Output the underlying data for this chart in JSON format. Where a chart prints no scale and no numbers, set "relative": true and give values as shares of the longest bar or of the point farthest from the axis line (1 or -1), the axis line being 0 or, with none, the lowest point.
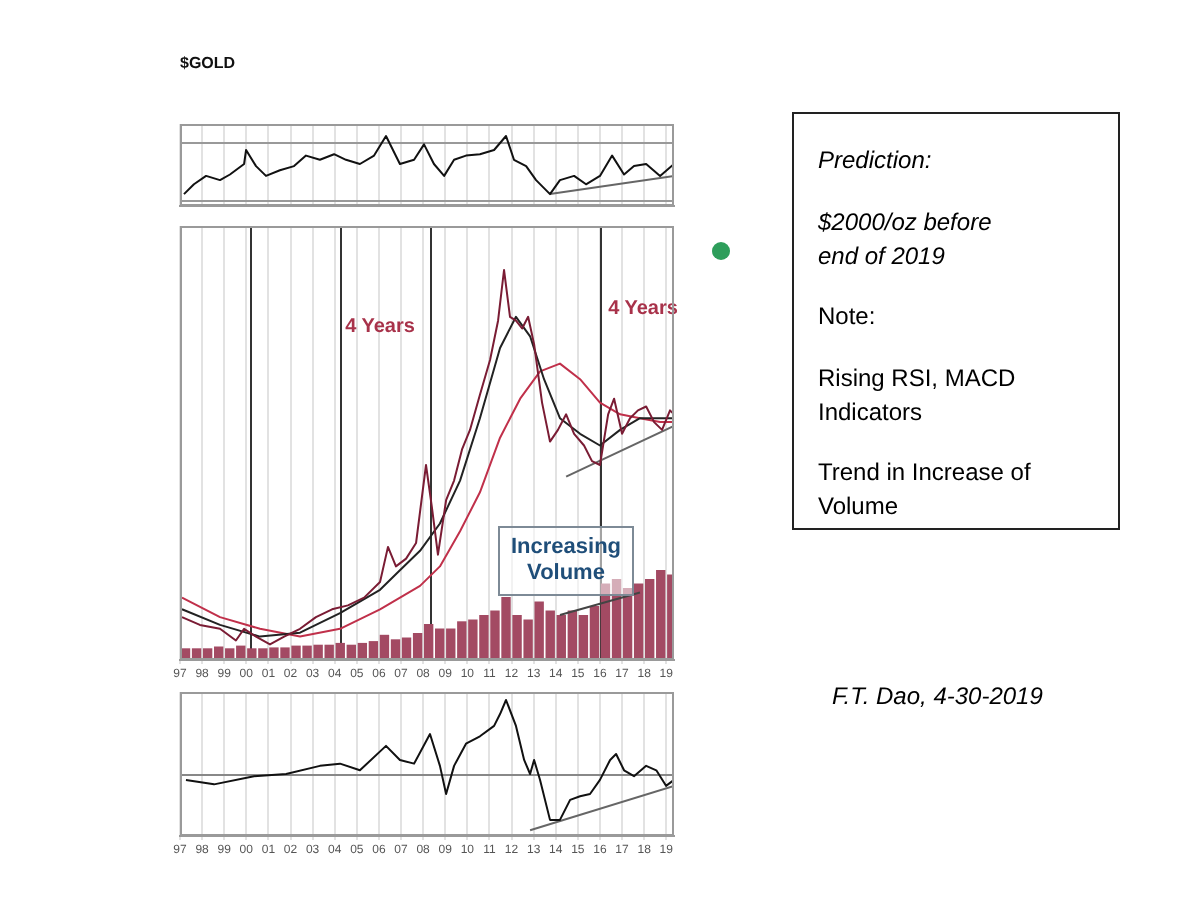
{
  "chart_data": [
    {
      "type": "line",
      "title": "$GOLD",
      "relative": true,
      "xlim": [
        1997,
        2019.35
      ],
      "grid": "x",
      "tick_labels": false,
      "xticks": [
        1997,
        1998,
        1999,
        2000,
        2001,
        2002,
        2003,
        2004,
        2005,
        2006,
        2007,
        2008,
        2009,
        2010,
        2011,
        2012,
        2013,
        2014,
        2015,
        2016,
        2017,
        2018,
        2019
      ],
      "x": [
        1997.18,
        1997.63,
        1998.18,
        1998.81,
        1999.26,
        1999.9,
        1999.99,
        2000.44,
        2000.89,
        2001.52,
        2002.16,
        2002.7,
        2003.33,
        2003.97,
        2004.51,
        2005.14,
        2005.78,
        2006.32,
        2006.95,
        2007.59,
        2008.04,
        2008.49,
        2008.95,
        2009.4,
        2009.94,
        2010.57,
        2011.21,
        2011.75,
        2012.11,
        2012.66,
        2013.11,
        2013.74,
        2014.19,
        2014.83,
        2015.37,
        2016.0,
        2016.55,
        2017.09,
        2017.54,
        2018.09,
        2018.72,
        2019.35
      ],
      "series": [
        {
          "color": "#111111",
          "values": [
            0.17,
            0.31,
            0.43,
            0.37,
            0.45,
            0.6,
            0.8,
            0.57,
            0.43,
            0.51,
            0.57,
            0.72,
            0.66,
            0.74,
            0.66,
            0.6,
            0.72,
            1,
            0.6,
            0.66,
            0.88,
            0.6,
            0.43,
            0.66,
            0.72,
            0.74,
            0.8,
            1,
            0.66,
            0.57,
            0.37,
            0.17,
            0.37,
            0.43,
            0.31,
            0.43,
            0.72,
            0.45,
            0.57,
            0.6,
            0.43,
            0.6
          ]
        },
        {
          "color": "#666666",
          "x": [
            2013.74,
            2019.35
          ],
          "values": [
            0.17,
            0.43
          ]
        }
      ],
      "ref_lines": [
        {
          "axis": "y",
          "value": 0.92,
          "color": "#999999"
        },
        {
          "axis": "y",
          "value": 0.09,
          "color": "#999999"
        }
      ]
    },
    {
      "type": "line",
      "relative": true,
      "xlim": [
        1997,
        2019.35
      ],
      "grid": "x",
      "tick_labels": "x",
      "xticks": [
        {
          "value": 1997,
          "label": "97"
        },
        {
          "value": 1998,
          "label": "98"
        },
        {
          "value": 1999,
          "label": "99"
        },
        {
          "value": 2000,
          "label": "00"
        },
        {
          "value": 2001,
          "label": "01"
        },
        {
          "value": 2002,
          "label": "02"
        },
        {
          "value": 2003,
          "label": "03"
        },
        {
          "value": 2004,
          "label": "04"
        },
        {
          "value": 2005,
          "label": "05"
        },
        {
          "value": 2006,
          "label": "06"
        },
        {
          "value": 2007,
          "label": "07"
        },
        {
          "value": 2008,
          "label": "08"
        },
        {
          "value": 2009,
          "label": "09"
        },
        {
          "value": 2010,
          "label": "10"
        },
        {
          "value": 2011,
          "label": "11"
        },
        {
          "value": 2012,
          "label": "12"
        },
        {
          "value": 2013,
          "label": "13"
        },
        {
          "value": 2014,
          "label": "14"
        },
        {
          "value": 2015,
          "label": "15"
        },
        {
          "value": 2016,
          "label": "16"
        },
        {
          "value": 2017,
          "label": "17"
        },
        {
          "value": 2018,
          "label": "18"
        },
        {
          "value": 2019,
          "label": "19"
        }
      ],
      "x": [
        1997.09,
        1997.9,
        1998.81,
        1999.53,
        1999.9,
        2000.44,
        2001.07,
        2001.71,
        2002.43,
        2003.15,
        2003.88,
        2004.6,
        2005.33,
        2006.05,
        2006.41,
        2006.77,
        2007.23,
        2007.68,
        2008.13,
        2008.4,
        2008.67,
        2009.04,
        2009.4,
        2009.76,
        2010.12,
        2010.57,
        2011.03,
        2011.39,
        2011.66,
        2011.93,
        2012.2,
        2012.48,
        2012.75,
        2013.02,
        2013.38,
        2013.74,
        2014.1,
        2014.47,
        2014.83,
        2015.28,
        2015.64,
        2016.0,
        2016.37,
        2016.64,
        2017.0,
        2017.36,
        2017.72,
        2018.09,
        2018.45,
        2018.81,
        2019.17,
        2019.35
      ],
      "series": [
        {
          "type": "bar",
          "axis": "y2",
          "color": "#a34a63",
          "x": [
            1997.25,
            1997.75,
            1998.25,
            1998.75,
            1999.25,
            1999.75,
            2000.25,
            2000.75,
            2001.25,
            2001.75,
            2002.25,
            2002.75,
            2003.25,
            2003.75,
            2004.25,
            2004.75,
            2005.25,
            2005.75,
            2006.25,
            2006.75,
            2007.25,
            2007.75,
            2008.25,
            2008.75,
            2009.25,
            2009.75,
            2010.25,
            2010.75,
            2011.25,
            2011.75,
            2012.25,
            2012.75,
            2013.25,
            2013.75,
            2014.25,
            2014.75,
            2015.25,
            2015.75,
            2016.25,
            2016.75,
            2017.25,
            2017.75,
            2018.25,
            2018.75,
            2019.25
          ],
          "values": [
            0.13,
            0.13,
            0.13,
            0.15,
            0.13,
            0.16,
            0.13,
            0.13,
            0.14,
            0.14,
            0.16,
            0.16,
            0.17,
            0.17,
            0.19,
            0.17,
            0.19,
            0.21,
            0.28,
            0.23,
            0.25,
            0.3,
            0.4,
            0.35,
            0.35,
            0.43,
            0.45,
            0.5,
            0.55,
            0.7,
            0.5,
            0.45,
            0.65,
            0.55,
            0.5,
            0.55,
            0.5,
            0.6,
            0.85,
            0.9,
            0.8,
            0.85,
            0.9,
            1,
            0.95
          ]
        },
        {
          "color": "#7a1c34",
          "values": [
            0.11,
            0.09,
            0.08,
            0.05,
            0.08,
            0.06,
            0.04,
            0.06,
            0.08,
            0.11,
            0.13,
            0.14,
            0.16,
            0.2,
            0.29,
            0.24,
            0.26,
            0.3,
            0.5,
            0.39,
            0.27,
            0.41,
            0.46,
            0.54,
            0.59,
            0.68,
            0.77,
            0.87,
            1,
            0.88,
            0.87,
            0.85,
            0.88,
            0.81,
            0.66,
            0.56,
            0.59,
            0.63,
            0.58,
            0.55,
            0.51,
            0.5,
            0.63,
            0.67,
            0.58,
            0.62,
            0.64,
            0.65,
            0.61,
            0.59,
            0.64,
            0.63
          ]
        },
        {
          "color": "#222222",
          "x": [
            1997.09,
            1998.81,
            2000.62,
            2002.43,
            2004.24,
            2006.05,
            2006.95,
            2007.86,
            2008.76,
            2009.67,
            2010.57,
            2011.48,
            2012.2,
            2012.84,
            2013.47,
            2014.19,
            2015.1,
            2016.0,
            2016.91,
            2017.81,
            2018.72,
            2019.35
          ],
          "values": [
            0.13,
            0.09,
            0.06,
            0.07,
            0.12,
            0.18,
            0.23,
            0.28,
            0.35,
            0.46,
            0.62,
            0.8,
            0.88,
            0.83,
            0.72,
            0.62,
            0.58,
            0.55,
            0.59,
            0.62,
            0.62,
            0.62
          ]
        },
        {
          "color": "#c0304a",
          "x": [
            1997.09,
            1998.81,
            2000.62,
            2002.43,
            2004.24,
            2006.05,
            2007.86,
            2008.76,
            2009.67,
            2010.57,
            2011.48,
            2012.39,
            2013.29,
            2014.19,
            2015.1,
            2016.0,
            2016.91,
            2017.81,
            2018.72,
            2019.35
          ],
          "values": [
            0.16,
            0.11,
            0.08,
            0.06,
            0.08,
            0.13,
            0.19,
            0.24,
            0.33,
            0.43,
            0.57,
            0.67,
            0.74,
            0.76,
            0.72,
            0.66,
            0.63,
            0.62,
            0.61,
            0.61
          ]
        },
        {
          "color": "#666666",
          "x": [
            2014.47,
            2019.35
          ],
          "values": [
            0.47,
            0.6
          ]
        },
        {
          "axis": "y2",
          "color": "#444444",
          "x": [
            2014.19,
            2017.81
          ],
          "values": [
            0.5,
            0.75
          ]
        }
      ],
      "ref_lines": [
        {
          "axis": "x",
          "value": 2000.17,
          "color": "#333333"
        },
        {
          "axis": "x",
          "value": 2004.24,
          "color": "#333333"
        },
        {
          "axis": "x",
          "value": 2008.31,
          "color": "#333333"
        },
        {
          "axis": "x",
          "value": 2016.0,
          "color": "#333333"
        }
      ],
      "annotations": [
        "4 Years",
        "4 Years",
        "Increasing Volume"
      ]
    },
    {
      "type": "line",
      "relative": true,
      "xlim": [
        1997,
        2019.35
      ],
      "grid": "x",
      "tick_labels": "x",
      "xticks": [
        {
          "value": 1997,
          "label": "97"
        },
        {
          "value": 1998,
          "label": "98"
        },
        {
          "value": 1999,
          "label": "99"
        },
        {
          "value": 2000,
          "label": "00"
        },
        {
          "value": 2001,
          "label": "01"
        },
        {
          "value": 2002,
          "label": "02"
        },
        {
          "value": 2003,
          "label": "03"
        },
        {
          "value": 2004,
          "label": "04"
        },
        {
          "value": 2005,
          "label": "05"
        },
        {
          "value": 2006,
          "label": "06"
        },
        {
          "value": 2007,
          "label": "07"
        },
        {
          "value": 2008,
          "label": "08"
        },
        {
          "value": 2009,
          "label": "09"
        },
        {
          "value": 2010,
          "label": "10"
        },
        {
          "value": 2011,
          "label": "11"
        },
        {
          "value": 2012,
          "label": "12"
        },
        {
          "value": 2013,
          "label": "13"
        },
        {
          "value": 2014,
          "label": "14"
        },
        {
          "value": 2015,
          "label": "15"
        },
        {
          "value": 2016,
          "label": "16"
        },
        {
          "value": 2017,
          "label": "17"
        },
        {
          "value": 2018,
          "label": "18"
        },
        {
          "value": 2019,
          "label": "19"
        }
      ],
      "x": [
        1997.27,
        1998.54,
        2000.35,
        2001.8,
        2003.33,
        2004.24,
        2005.14,
        2006.32,
        2006.95,
        2007.59,
        2008.31,
        2008.76,
        2009.04,
        2009.4,
        2009.94,
        2010.57,
        2011.21,
        2011.48,
        2011.75,
        2012.2,
        2012.57,
        2012.84,
        2013.02,
        2013.29,
        2013.74,
        2014.19,
        2014.65,
        2015.1,
        2015.55,
        2016.0,
        2016.46,
        2016.73,
        2017.09,
        2017.54,
        2018.09,
        2018.55,
        2018.99,
        2019.35
      ],
      "series": [
        {
          "color": "#111111",
          "values": [
            -0.08,
            -0.14,
            -0.03,
            0,
            0.11,
            0.14,
            0.05,
            0.38,
            0.19,
            0.14,
            0.54,
            0.11,
            -0.27,
            0.11,
            0.41,
            0.51,
            0.65,
            0.81,
            1,
            0.65,
            0.19,
            0,
            0.19,
            -0.08,
            -0.62,
            -0.62,
            -0.35,
            -0.3,
            -0.27,
            -0.08,
            0.19,
            0.27,
            0.05,
            -0.03,
            0.11,
            0.05,
            -0.16,
            -0.08
          ]
        },
        {
          "color": "#666666",
          "x": [
            2012.84,
            2019.35
          ],
          "values": [
            -0.76,
            -0.16
          ]
        }
      ],
      "ref_lines": [
        {
          "axis": "y",
          "value": 0,
          "color": "#888888"
        }
      ]
    },
    {
      "type": "other",
      "annotations": [
        "Prediction:",
        "$2000/oz before end of 2019",
        "Note:",
        "Rising RSI, MACD Indicators",
        "Trend in Increase of Volume",
        "F.T. Dao, 4-30-2019"
      ]
    }
  ]
}
